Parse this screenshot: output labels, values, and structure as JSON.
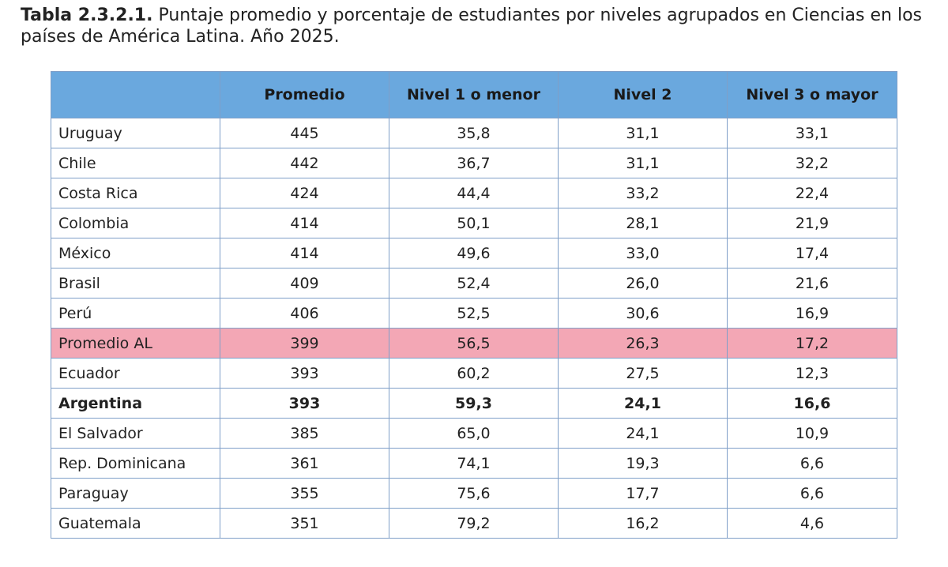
{
  "caption": {
    "label": "Tabla 2.3.2.1.",
    "text": "Puntaje promedio y porcentaje de estudiantes por niveles agrupados en Ciencias en los países de América Latina. Año 2025."
  },
  "table": {
    "headers": [
      "",
      "Promedio",
      "Nivel 1 o menor",
      "Nivel 2",
      "Nivel 3 o mayor"
    ],
    "rows": [
      {
        "country": "Uruguay",
        "promedio": "445",
        "nivel1": "35,8",
        "nivel2": "31,1",
        "nivel3": "33,1",
        "style": ""
      },
      {
        "country": "Chile",
        "promedio": "442",
        "nivel1": "36,7",
        "nivel2": "31,1",
        "nivel3": "32,2",
        "style": ""
      },
      {
        "country": "Costa Rica",
        "promedio": "424",
        "nivel1": "44,4",
        "nivel2": "33,2",
        "nivel3": "22,4",
        "style": ""
      },
      {
        "country": "Colombia",
        "promedio": "414",
        "nivel1": "50,1",
        "nivel2": "28,1",
        "nivel3": "21,9",
        "style": ""
      },
      {
        "country": "México",
        "promedio": "414",
        "nivel1": "49,6",
        "nivel2": "33,0",
        "nivel3": "17,4",
        "style": ""
      },
      {
        "country": "Brasil",
        "promedio": "409",
        "nivel1": "52,4",
        "nivel2": "26,0",
        "nivel3": "21,6",
        "style": ""
      },
      {
        "country": "Perú",
        "promedio": "406",
        "nivel1": "52,5",
        "nivel2": "30,6",
        "nivel3": "16,9",
        "style": ""
      },
      {
        "country": "Promedio AL",
        "promedio": "399",
        "nivel1": "56,5",
        "nivel2": "26,3",
        "nivel3": "17,2",
        "style": "highlight"
      },
      {
        "country": "Ecuador",
        "promedio": "393",
        "nivel1": "60,2",
        "nivel2": "27,5",
        "nivel3": "12,3",
        "style": ""
      },
      {
        "country": "Argentina",
        "promedio": "393",
        "nivel1": "59,3",
        "nivel2": "24,1",
        "nivel3": "16,6",
        "style": "bold"
      },
      {
        "country": "El Salvador",
        "promedio": "385",
        "nivel1": "65,0",
        "nivel2": "24,1",
        "nivel3": "10,9",
        "style": ""
      },
      {
        "country": "Rep. Dominicana",
        "promedio": "361",
        "nivel1": "74,1",
        "nivel2": "19,3",
        "nivel3": "6,6",
        "style": ""
      },
      {
        "country": "Paraguay",
        "promedio": "355",
        "nivel1": "75,6",
        "nivel2": "17,7",
        "nivel3": "6,6",
        "style": ""
      },
      {
        "country": "Guatemala",
        "promedio": "351",
        "nivel1": "79,2",
        "nivel2": "16,2",
        "nivel3": "4,6",
        "style": ""
      }
    ]
  },
  "colors": {
    "header_bg": "#6aa8de",
    "highlight_row_bg": "#f3a7b5",
    "border": "#7f9fc8"
  }
}
